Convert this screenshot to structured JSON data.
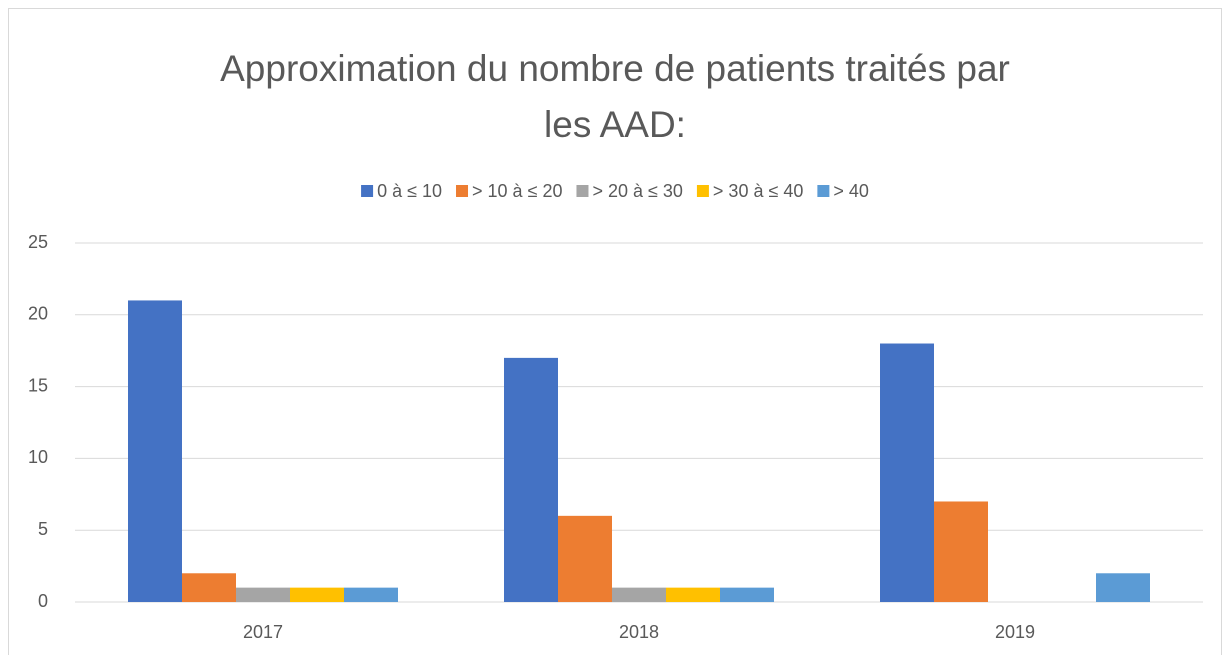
{
  "chart_data": {
    "type": "bar",
    "title": [
      "Approximation du nombre de patients traités par",
      "les AAD:"
    ],
    "categories": [
      "2017",
      "2018",
      "2019"
    ],
    "series": [
      {
        "name": "0 à ≤ 10",
        "color": "#4472c4",
        "values": [
          21,
          17,
          18
        ]
      },
      {
        "name": "> 10 à ≤ 20",
        "color": "#ed7d31",
        "values": [
          2,
          6,
          7
        ]
      },
      {
        "name": "> 20 à ≤ 30",
        "color": "#a5a5a5",
        "values": [
          1,
          1,
          0
        ]
      },
      {
        "name": "> 30 à ≤ 40",
        "color": "#ffc000",
        "values": [
          1,
          1,
          0
        ]
      },
      {
        "name": "> 40",
        "color": "#5b9bd5",
        "values": [
          1,
          1,
          2
        ]
      }
    ],
    "ylim": [
      0,
      25
    ],
    "yticks": [
      0,
      5,
      10,
      15,
      20,
      25
    ],
    "grid": true,
    "legend": "top"
  }
}
